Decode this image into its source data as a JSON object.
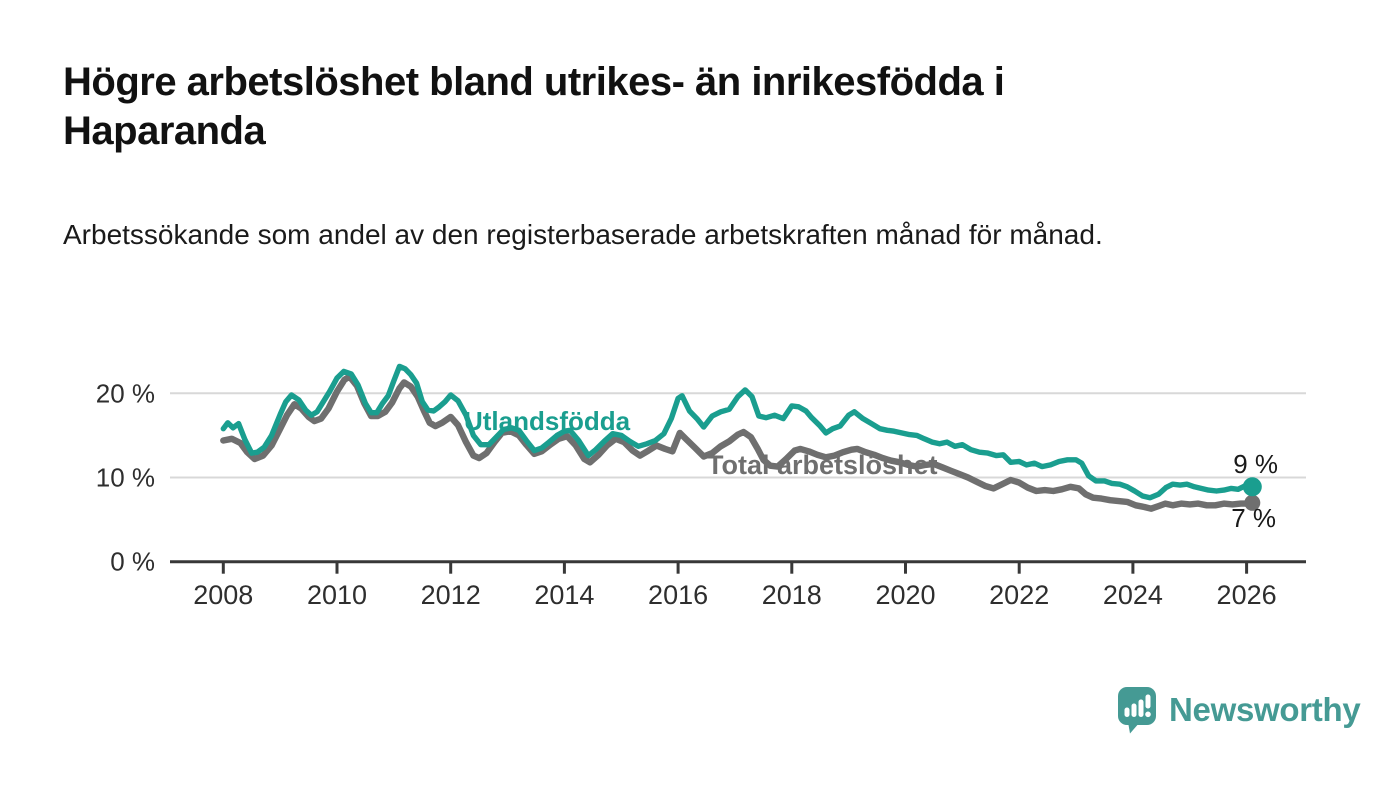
{
  "header": {
    "title": "Högre arbetslöshet bland utrikes- än inrikesfödda i Haparanda",
    "subtitle": "Arbetssökande som andel av den registerbaserade arbetskraften månad för månad."
  },
  "colors": {
    "accent_teal": "#1a9e8f",
    "line_gray": "#6f6f6f",
    "gridline": "#d8d8d8",
    "axis": "#383838",
    "tick_label": "#333333",
    "logo_teal": "#459a94"
  },
  "chart_data": {
    "type": "line",
    "title": "Högre arbetslöshet bland utrikes- än inrikesfödda i Haparanda",
    "subtitle": "Arbetssökande som andel av den registerbaserade arbetskraften månad för månad.",
    "xlabel": "",
    "ylabel": "",
    "unit": "%",
    "xlim": [
      2007.1,
      2027.0
    ],
    "ylim": [
      0,
      24
    ],
    "grid": "horizontal",
    "legend": "inline-labels",
    "x_axis": {
      "ticks": [
        {
          "value": 2008,
          "label": "2008"
        },
        {
          "value": 2010,
          "label": "2010"
        },
        {
          "value": 2012,
          "label": "2012"
        },
        {
          "value": 2014,
          "label": "2014"
        },
        {
          "value": 2016,
          "label": "2016"
        },
        {
          "value": 2018,
          "label": "2018"
        },
        {
          "value": 2020,
          "label": "2020"
        },
        {
          "value": 2022,
          "label": "2022"
        },
        {
          "value": 2024,
          "label": "2024"
        },
        {
          "value": 2026,
          "label": "2026"
        }
      ]
    },
    "y_axis": {
      "ticks": [
        {
          "value": 20,
          "label": "20 %"
        },
        {
          "value": 10,
          "label": "10 %"
        },
        {
          "value": 0,
          "label": "0 %"
        }
      ]
    },
    "series": [
      {
        "name": "Utlandsfödda",
        "color": "#1a9e8f",
        "end_label": "9 %",
        "end_value": 9,
        "points": [
          [
            2008.0,
            15.8
          ],
          [
            2008.08,
            16.5
          ],
          [
            2008.17,
            15.9
          ],
          [
            2008.27,
            16.4
          ],
          [
            2008.38,
            14.5
          ],
          [
            2008.5,
            12.9
          ],
          [
            2008.6,
            13.0
          ],
          [
            2008.72,
            13.6
          ],
          [
            2008.85,
            15.0
          ],
          [
            2009.0,
            17.5
          ],
          [
            2009.1,
            19.0
          ],
          [
            2009.2,
            19.8
          ],
          [
            2009.33,
            19.2
          ],
          [
            2009.45,
            18.0
          ],
          [
            2009.55,
            17.4
          ],
          [
            2009.65,
            17.8
          ],
          [
            2009.75,
            18.9
          ],
          [
            2009.87,
            20.2
          ],
          [
            2010.0,
            21.8
          ],
          [
            2010.12,
            22.6
          ],
          [
            2010.25,
            22.3
          ],
          [
            2010.37,
            21.0
          ],
          [
            2010.5,
            18.8
          ],
          [
            2010.6,
            17.7
          ],
          [
            2010.7,
            17.7
          ],
          [
            2010.8,
            18.8
          ],
          [
            2010.9,
            19.7
          ],
          [
            2011.0,
            21.5
          ],
          [
            2011.1,
            23.2
          ],
          [
            2011.2,
            22.9
          ],
          [
            2011.3,
            22.2
          ],
          [
            2011.4,
            21.2
          ],
          [
            2011.5,
            19.0
          ],
          [
            2011.6,
            18.0
          ],
          [
            2011.7,
            17.9
          ],
          [
            2011.8,
            18.4
          ],
          [
            2011.9,
            19.0
          ],
          [
            2012.0,
            19.8
          ],
          [
            2012.13,
            19.1
          ],
          [
            2012.27,
            17.4
          ],
          [
            2012.4,
            15.0
          ],
          [
            2012.53,
            13.9
          ],
          [
            2012.67,
            13.9
          ],
          [
            2012.8,
            14.8
          ],
          [
            2012.93,
            15.7
          ],
          [
            2013.07,
            15.9
          ],
          [
            2013.2,
            15.6
          ],
          [
            2013.33,
            14.4
          ],
          [
            2013.47,
            13.2
          ],
          [
            2013.6,
            13.5
          ],
          [
            2013.73,
            14.2
          ],
          [
            2013.87,
            15.0
          ],
          [
            2014.0,
            15.5
          ],
          [
            2014.1,
            15.6
          ],
          [
            2014.25,
            14.4
          ],
          [
            2014.42,
            12.6
          ],
          [
            2014.55,
            13.3
          ],
          [
            2014.7,
            14.3
          ],
          [
            2014.85,
            15.2
          ],
          [
            2015.0,
            15.0
          ],
          [
            2015.15,
            14.3
          ],
          [
            2015.3,
            13.7
          ],
          [
            2015.45,
            14.0
          ],
          [
            2015.6,
            14.4
          ],
          [
            2015.75,
            15.2
          ],
          [
            2015.88,
            17.0
          ],
          [
            2016.0,
            19.4
          ],
          [
            2016.07,
            19.7
          ],
          [
            2016.2,
            17.9
          ],
          [
            2016.33,
            17.0
          ],
          [
            2016.45,
            16.0
          ],
          [
            2016.6,
            17.3
          ],
          [
            2016.75,
            17.8
          ],
          [
            2016.9,
            18.1
          ],
          [
            2017.05,
            19.6
          ],
          [
            2017.18,
            20.4
          ],
          [
            2017.3,
            19.6
          ],
          [
            2017.42,
            17.3
          ],
          [
            2017.55,
            17.1
          ],
          [
            2017.7,
            17.4
          ],
          [
            2017.85,
            17.0
          ],
          [
            2018.0,
            18.5
          ],
          [
            2018.12,
            18.4
          ],
          [
            2018.25,
            17.9
          ],
          [
            2018.35,
            17.1
          ],
          [
            2018.5,
            16.1
          ],
          [
            2018.6,
            15.3
          ],
          [
            2018.72,
            15.8
          ],
          [
            2018.85,
            16.1
          ],
          [
            2019.0,
            17.4
          ],
          [
            2019.1,
            17.8
          ],
          [
            2019.25,
            17.0
          ],
          [
            2019.4,
            16.4
          ],
          [
            2019.55,
            15.8
          ],
          [
            2019.68,
            15.6
          ],
          [
            2019.8,
            15.5
          ],
          [
            2019.93,
            15.3
          ],
          [
            2020.07,
            15.1
          ],
          [
            2020.2,
            15.0
          ],
          [
            2020.33,
            14.6
          ],
          [
            2020.47,
            14.2
          ],
          [
            2020.6,
            14.0
          ],
          [
            2020.73,
            14.2
          ],
          [
            2020.87,
            13.7
          ],
          [
            2021.0,
            13.9
          ],
          [
            2021.15,
            13.3
          ],
          [
            2021.3,
            13.0
          ],
          [
            2021.45,
            12.9
          ],
          [
            2021.6,
            12.6
          ],
          [
            2021.72,
            12.7
          ],
          [
            2021.85,
            11.8
          ],
          [
            2022.0,
            11.9
          ],
          [
            2022.13,
            11.5
          ],
          [
            2022.27,
            11.7
          ],
          [
            2022.4,
            11.3
          ],
          [
            2022.55,
            11.5
          ],
          [
            2022.7,
            11.9
          ],
          [
            2022.85,
            12.1
          ],
          [
            2023.0,
            12.1
          ],
          [
            2023.1,
            11.7
          ],
          [
            2023.22,
            10.2
          ],
          [
            2023.35,
            9.6
          ],
          [
            2023.5,
            9.6
          ],
          [
            2023.63,
            9.3
          ],
          [
            2023.77,
            9.2
          ],
          [
            2023.9,
            8.9
          ],
          [
            2024.03,
            8.4
          ],
          [
            2024.17,
            7.8
          ],
          [
            2024.3,
            7.6
          ],
          [
            2024.45,
            8.0
          ],
          [
            2024.58,
            8.8
          ],
          [
            2024.7,
            9.2
          ],
          [
            2024.83,
            9.1
          ],
          [
            2024.95,
            9.2
          ],
          [
            2025.08,
            8.9
          ],
          [
            2025.2,
            8.7
          ],
          [
            2025.33,
            8.5
          ],
          [
            2025.47,
            8.4
          ],
          [
            2025.6,
            8.5
          ],
          [
            2025.73,
            8.7
          ],
          [
            2025.85,
            8.6
          ],
          [
            2025.97,
            9.0
          ],
          [
            2026.1,
            8.9
          ]
        ]
      },
      {
        "name": "Total arbetslöshet",
        "color": "#6f6f6f",
        "end_label": "7 %",
        "end_value": 7,
        "points": [
          [
            2008.0,
            14.4
          ],
          [
            2008.15,
            14.6
          ],
          [
            2008.3,
            14.1
          ],
          [
            2008.42,
            13.0
          ],
          [
            2008.55,
            12.2
          ],
          [
            2008.7,
            12.6
          ],
          [
            2008.85,
            13.8
          ],
          [
            2009.0,
            15.8
          ],
          [
            2009.12,
            17.4
          ],
          [
            2009.25,
            18.7
          ],
          [
            2009.37,
            18.2
          ],
          [
            2009.5,
            17.2
          ],
          [
            2009.6,
            16.7
          ],
          [
            2009.72,
            17.0
          ],
          [
            2009.85,
            18.2
          ],
          [
            2010.0,
            20.2
          ],
          [
            2010.13,
            21.6
          ],
          [
            2010.22,
            22.0
          ],
          [
            2010.35,
            20.9
          ],
          [
            2010.48,
            18.8
          ],
          [
            2010.6,
            17.3
          ],
          [
            2010.72,
            17.3
          ],
          [
            2010.85,
            17.8
          ],
          [
            2010.97,
            18.9
          ],
          [
            2011.1,
            20.6
          ],
          [
            2011.18,
            21.3
          ],
          [
            2011.3,
            20.8
          ],
          [
            2011.42,
            19.6
          ],
          [
            2011.53,
            17.9
          ],
          [
            2011.63,
            16.5
          ],
          [
            2011.73,
            16.1
          ],
          [
            2011.85,
            16.5
          ],
          [
            2012.0,
            17.2
          ],
          [
            2012.13,
            16.2
          ],
          [
            2012.27,
            14.2
          ],
          [
            2012.4,
            12.6
          ],
          [
            2012.5,
            12.3
          ],
          [
            2012.63,
            12.9
          ],
          [
            2012.77,
            14.2
          ],
          [
            2012.9,
            15.3
          ],
          [
            2013.05,
            15.5
          ],
          [
            2013.2,
            15.0
          ],
          [
            2013.33,
            13.9
          ],
          [
            2013.47,
            12.8
          ],
          [
            2013.6,
            13.1
          ],
          [
            2013.75,
            13.9
          ],
          [
            2013.9,
            14.6
          ],
          [
            2014.05,
            14.9
          ],
          [
            2014.2,
            13.8
          ],
          [
            2014.35,
            12.2
          ],
          [
            2014.45,
            11.8
          ],
          [
            2014.6,
            12.7
          ],
          [
            2014.75,
            13.8
          ],
          [
            2014.9,
            14.6
          ],
          [
            2015.05,
            14.2
          ],
          [
            2015.2,
            13.2
          ],
          [
            2015.33,
            12.6
          ],
          [
            2015.48,
            13.2
          ],
          [
            2015.62,
            13.8
          ],
          [
            2015.77,
            13.4
          ],
          [
            2015.9,
            13.1
          ],
          [
            2016.03,
            15.3
          ],
          [
            2016.15,
            14.5
          ],
          [
            2016.3,
            13.5
          ],
          [
            2016.45,
            12.5
          ],
          [
            2016.6,
            12.9
          ],
          [
            2016.75,
            13.7
          ],
          [
            2016.9,
            14.3
          ],
          [
            2017.05,
            15.1
          ],
          [
            2017.15,
            15.4
          ],
          [
            2017.28,
            14.8
          ],
          [
            2017.4,
            13.4
          ],
          [
            2017.5,
            12.1
          ],
          [
            2017.62,
            11.4
          ],
          [
            2017.75,
            11.3
          ],
          [
            2017.9,
            12.2
          ],
          [
            2018.05,
            13.2
          ],
          [
            2018.15,
            13.4
          ],
          [
            2018.3,
            13.1
          ],
          [
            2018.45,
            12.7
          ],
          [
            2018.6,
            12.4
          ],
          [
            2018.75,
            12.6
          ],
          [
            2018.9,
            13.0
          ],
          [
            2019.05,
            13.3
          ],
          [
            2019.15,
            13.4
          ],
          [
            2019.3,
            13.0
          ],
          [
            2019.45,
            12.7
          ],
          [
            2019.6,
            12.3
          ],
          [
            2019.75,
            12.0
          ],
          [
            2019.9,
            11.8
          ],
          [
            2020.05,
            11.5
          ],
          [
            2020.2,
            11.3
          ],
          [
            2020.35,
            11.5
          ],
          [
            2020.5,
            11.6
          ],
          [
            2020.65,
            11.2
          ],
          [
            2020.8,
            10.8
          ],
          [
            2020.95,
            10.4
          ],
          [
            2021.1,
            10.0
          ],
          [
            2021.25,
            9.5
          ],
          [
            2021.4,
            9.0
          ],
          [
            2021.55,
            8.7
          ],
          [
            2021.7,
            9.2
          ],
          [
            2021.85,
            9.7
          ],
          [
            2022.0,
            9.4
          ],
          [
            2022.15,
            8.8
          ],
          [
            2022.3,
            8.4
          ],
          [
            2022.45,
            8.5
          ],
          [
            2022.6,
            8.4
          ],
          [
            2022.75,
            8.6
          ],
          [
            2022.9,
            8.9
          ],
          [
            2023.05,
            8.7
          ],
          [
            2023.17,
            8.0
          ],
          [
            2023.3,
            7.6
          ],
          [
            2023.45,
            7.5
          ],
          [
            2023.6,
            7.3
          ],
          [
            2023.75,
            7.2
          ],
          [
            2023.9,
            7.1
          ],
          [
            2024.05,
            6.7
          ],
          [
            2024.2,
            6.5
          ],
          [
            2024.32,
            6.3
          ],
          [
            2024.45,
            6.6
          ],
          [
            2024.57,
            6.9
          ],
          [
            2024.7,
            6.7
          ],
          [
            2024.85,
            6.9
          ],
          [
            2025.0,
            6.8
          ],
          [
            2025.15,
            6.9
          ],
          [
            2025.3,
            6.7
          ],
          [
            2025.45,
            6.7
          ],
          [
            2025.6,
            6.9
          ],
          [
            2025.75,
            6.8
          ],
          [
            2025.9,
            6.9
          ],
          [
            2026.0,
            6.9
          ],
          [
            2026.1,
            7.0
          ]
        ]
      }
    ]
  },
  "branding": {
    "logo_text": "Newsworthy"
  }
}
